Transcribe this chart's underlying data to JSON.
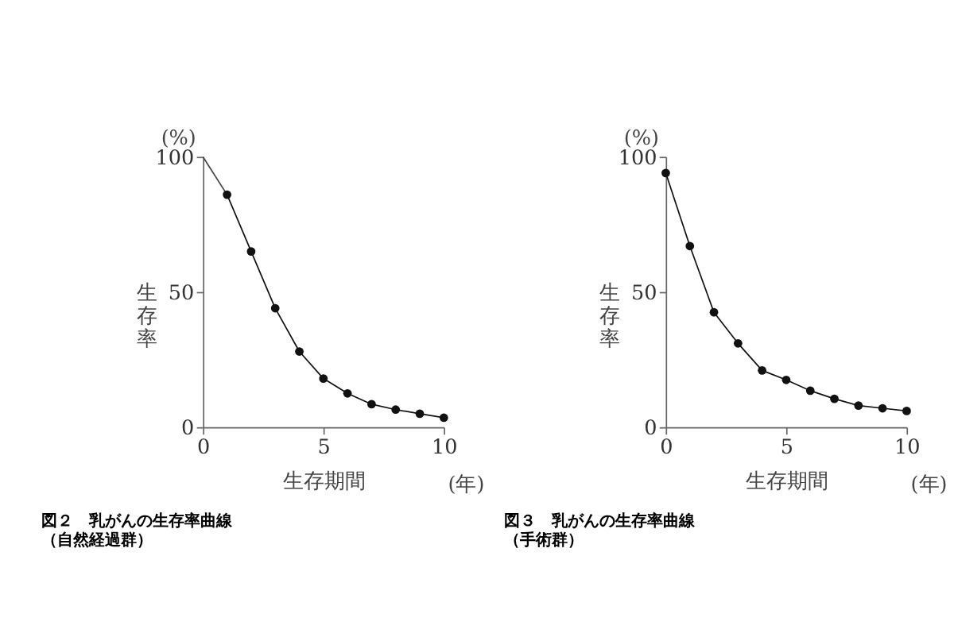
{
  "chart_data": [
    {
      "type": "line",
      "title": "図２　乳がんの生存率曲線",
      "subtitle": "（自然経過群）",
      "xlabel": "生存期間",
      "ylabel": "生存率",
      "annotations": [
        "(%)",
        "(年)"
      ],
      "series": [
        {
          "type": "line",
          "marker": "none",
          "color": "#444444",
          "x": [
            0,
            1
          ],
          "values": [
            100,
            86
          ]
        },
        {
          "type": "line",
          "marker": "circle",
          "color": "#111111",
          "x": [
            1,
            2,
            3,
            4,
            5,
            6,
            7,
            8,
            9,
            10
          ],
          "values": [
            86,
            65,
            44,
            28,
            18,
            12.5,
            8.5,
            6.5,
            5,
            3.5
          ]
        }
      ],
      "xlim": [
        0,
        10
      ],
      "xticks": [
        0,
        5,
        10
      ],
      "ylim": [
        0,
        100
      ],
      "yticks": [
        0,
        50,
        100
      ],
      "grid": false
    },
    {
      "type": "line",
      "title": "図３　乳がんの生存率曲線",
      "subtitle": "（手術群）",
      "xlabel": "生存期間",
      "ylabel": "生存率",
      "annotations": [
        "(%)",
        "(年)"
      ],
      "series": [
        {
          "type": "line",
          "marker": "circle",
          "color": "#111111",
          "x": [
            0,
            1,
            2,
            3,
            4,
            5,
            6,
            7,
            8,
            9,
            10
          ],
          "values": [
            94,
            67,
            42.5,
            31,
            21,
            17.5,
            13.5,
            10.5,
            8,
            7,
            6
          ]
        }
      ],
      "xlim": [
        0,
        10
      ],
      "xticks": [
        0,
        5,
        10
      ],
      "ylim": [
        0,
        100
      ],
      "yticks": [
        0,
        50,
        100
      ],
      "grid": false
    }
  ]
}
